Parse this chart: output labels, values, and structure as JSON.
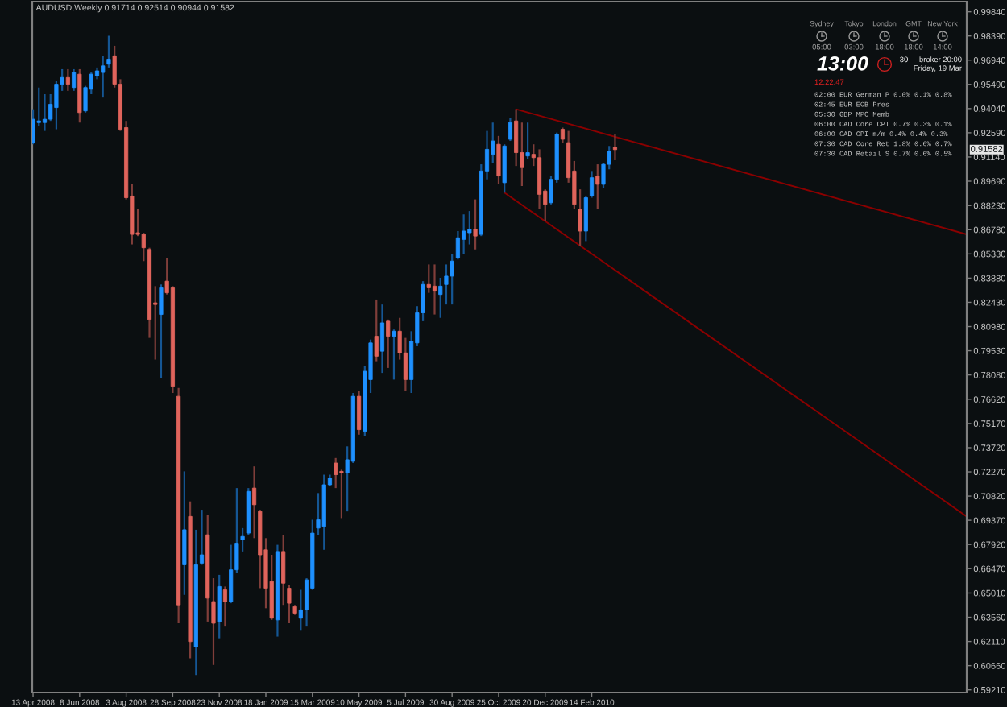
{
  "chart_data": [
    {
      "type": "candlestick",
      "title": "AUDUSD,Weekly 0.91714 0.92514 0.90944 0.91582",
      "x": [
        "2008-04-13",
        "2008-04-20",
        "2008-04-27",
        "2008-05-04",
        "2008-05-11",
        "2008-05-18",
        "2008-05-25",
        "2008-06-01",
        "2008-06-08",
        "2008-06-15",
        "2008-06-22",
        "2008-06-29",
        "2008-07-06",
        "2008-07-13",
        "2008-07-20",
        "2008-07-27",
        "2008-08-03",
        "2008-08-10",
        "2008-08-17",
        "2008-08-24",
        "2008-08-31",
        "2008-09-07",
        "2008-09-14",
        "2008-09-21",
        "2008-09-28",
        "2008-10-05",
        "2008-10-12",
        "2008-10-19",
        "2008-10-26",
        "2008-11-02",
        "2008-11-09",
        "2008-11-16",
        "2008-11-23",
        "2008-11-30",
        "2008-12-07",
        "2008-12-14",
        "2008-12-21",
        "2008-12-28",
        "2009-01-04",
        "2009-01-11",
        "2009-01-18",
        "2009-01-25",
        "2009-02-01",
        "2009-02-08",
        "2009-02-15",
        "2009-02-22",
        "2009-03-01",
        "2009-03-08",
        "2009-03-15",
        "2009-03-22",
        "2009-03-29",
        "2009-04-05",
        "2009-04-12",
        "2009-04-19",
        "2009-04-26",
        "2009-05-03",
        "2009-05-10",
        "2009-05-17",
        "2009-05-24",
        "2009-05-31",
        "2009-06-07",
        "2009-06-14",
        "2009-06-21",
        "2009-06-28",
        "2009-07-05",
        "2009-07-12",
        "2009-07-19",
        "2009-07-26",
        "2009-08-02",
        "2009-08-09",
        "2009-08-16",
        "2009-08-23",
        "2009-08-30",
        "2009-09-06",
        "2009-09-13",
        "2009-09-20",
        "2009-09-27",
        "2009-10-04",
        "2009-10-11",
        "2009-10-18",
        "2009-10-25",
        "2009-11-01",
        "2009-11-08",
        "2009-11-15",
        "2009-11-22",
        "2009-11-29",
        "2009-12-06",
        "2009-12-13",
        "2009-12-20",
        "2009-12-27",
        "2010-01-03",
        "2010-01-10",
        "2010-01-17",
        "2010-01-24",
        "2010-01-31",
        "2010-02-07",
        "2010-02-14",
        "2010-02-21",
        "2010-02-28",
        "2010-03-07",
        "2010-03-14"
      ],
      "ohlc": [
        [
          0.92,
          0.94,
          0.919,
          0.934
        ],
        [
          0.932,
          0.953,
          0.93,
          0.933
        ],
        [
          0.932,
          0.949,
          0.927,
          0.934
        ],
        [
          0.934,
          0.949,
          0.933,
          0.943
        ],
        [
          0.941,
          0.957,
          0.928,
          0.955
        ],
        [
          0.955,
          0.964,
          0.951,
          0.959
        ],
        [
          0.959,
          0.964,
          0.951,
          0.955
        ],
        [
          0.953,
          0.964,
          0.951,
          0.962
        ],
        [
          0.961,
          0.964,
          0.932,
          0.938
        ],
        [
          0.939,
          0.954,
          0.938,
          0.953
        ],
        [
          0.952,
          0.962,
          0.949,
          0.961
        ],
        [
          0.96,
          0.965,
          0.958,
          0.963
        ],
        [
          0.962,
          0.972,
          0.947,
          0.966
        ],
        [
          0.967,
          0.984,
          0.965,
          0.97
        ],
        [
          0.972,
          0.978,
          0.953,
          0.955
        ],
        [
          0.955,
          0.958,
          0.927,
          0.928
        ],
        [
          0.929,
          0.933,
          0.886,
          0.887
        ],
        [
          0.888,
          0.895,
          0.859,
          0.865
        ],
        [
          0.866,
          0.88,
          0.864,
          0.865
        ],
        [
          0.865,
          0.866,
          0.849,
          0.857
        ],
        [
          0.856,
          0.857,
          0.803,
          0.814
        ],
        [
          0.824,
          0.834,
          0.79,
          0.823
        ],
        [
          0.817,
          0.835,
          0.779,
          0.833
        ],
        [
          0.837,
          0.851,
          0.829,
          0.83
        ],
        [
          0.833,
          0.834,
          0.77,
          0.774
        ],
        [
          0.768,
          0.773,
          0.632,
          0.643
        ],
        [
          0.667,
          0.723,
          0.649,
          0.688
        ],
        [
          0.696,
          0.705,
          0.611,
          0.621
        ],
        [
          0.618,
          0.688,
          0.601,
          0.667
        ],
        [
          0.668,
          0.7,
          0.667,
          0.673
        ],
        [
          0.685,
          0.697,
          0.633,
          0.647
        ],
        [
          0.645,
          0.659,
          0.607,
          0.632
        ],
        [
          0.633,
          0.661,
          0.623,
          0.654
        ],
        [
          0.652,
          0.654,
          0.63,
          0.645
        ],
        [
          0.645,
          0.679,
          0.644,
          0.664
        ],
        [
          0.664,
          0.713,
          0.662,
          0.68
        ],
        [
          0.682,
          0.689,
          0.675,
          0.684
        ],
        [
          0.686,
          0.713,
          0.685,
          0.711
        ],
        [
          0.713,
          0.726,
          0.683,
          0.703
        ],
        [
          0.699,
          0.7,
          0.653,
          0.673
        ],
        [
          0.676,
          0.683,
          0.641,
          0.653
        ],
        [
          0.657,
          0.673,
          0.634,
          0.635
        ],
        [
          0.634,
          0.679,
          0.624,
          0.675
        ],
        [
          0.675,
          0.685,
          0.643,
          0.656
        ],
        [
          0.653,
          0.655,
          0.632,
          0.644
        ],
        [
          0.642,
          0.643,
          0.637,
          0.638
        ],
        [
          0.635,
          0.652,
          0.628,
          0.64
        ],
        [
          0.64,
          0.659,
          0.63,
          0.658
        ],
        [
          0.653,
          0.694,
          0.652,
          0.686
        ],
        [
          0.689,
          0.71,
          0.685,
          0.694
        ],
        [
          0.69,
          0.721,
          0.676,
          0.715
        ],
        [
          0.715,
          0.721,
          0.714,
          0.719
        ],
        [
          0.728,
          0.731,
          0.713,
          0.721
        ],
        [
          0.723,
          0.724,
          0.695,
          0.722
        ],
        [
          0.722,
          0.738,
          0.699,
          0.73
        ],
        [
          0.729,
          0.77,
          0.728,
          0.768
        ],
        [
          0.768,
          0.771,
          0.745,
          0.748
        ],
        [
          0.747,
          0.786,
          0.744,
          0.783
        ],
        [
          0.778,
          0.802,
          0.77,
          0.8
        ],
        [
          0.804,
          0.826,
          0.789,
          0.792
        ],
        [
          0.795,
          0.823,
          0.782,
          0.812
        ],
        [
          0.813,
          0.814,
          0.785,
          0.804
        ],
        [
          0.804,
          0.808,
          0.778,
          0.807
        ],
        [
          0.807,
          0.815,
          0.79,
          0.794
        ],
        [
          0.794,
          0.803,
          0.771,
          0.778
        ],
        [
          0.778,
          0.807,
          0.77,
          0.801
        ],
        [
          0.8,
          0.822,
          0.798,
          0.818
        ],
        [
          0.818,
          0.837,
          0.813,
          0.835
        ],
        [
          0.835,
          0.847,
          0.83,
          0.833
        ],
        [
          0.834,
          0.847,
          0.817,
          0.831
        ],
        [
          0.829,
          0.839,
          0.815,
          0.834
        ],
        [
          0.835,
          0.847,
          0.823,
          0.84
        ],
        [
          0.84,
          0.853,
          0.823,
          0.849
        ],
        [
          0.851,
          0.867,
          0.85,
          0.863
        ],
        [
          0.862,
          0.877,
          0.853,
          0.867
        ],
        [
          0.866,
          0.879,
          0.859,
          0.868
        ],
        [
          0.868,
          0.886,
          0.856,
          0.864
        ],
        [
          0.865,
          0.907,
          0.864,
          0.903
        ],
        [
          0.903,
          0.927,
          0.898,
          0.916
        ],
        [
          0.913,
          0.932,
          0.908,
          0.921
        ],
        [
          0.919,
          0.924,
          0.895,
          0.9
        ],
        [
          0.896,
          0.919,
          0.89,
          0.918
        ],
        [
          0.922,
          0.935,
          0.921,
          0.932
        ],
        [
          0.933,
          0.94,
          0.906,
          0.914
        ],
        [
          0.914,
          0.932,
          0.894,
          0.905
        ],
        [
          0.912,
          0.932,
          0.91,
          0.914
        ],
        [
          0.913,
          0.919,
          0.906,
          0.911
        ],
        [
          0.911,
          0.916,
          0.88,
          0.889
        ],
        [
          0.891,
          0.892,
          0.873,
          0.883
        ],
        [
          0.884,
          0.9,
          0.883,
          0.898
        ],
        [
          0.898,
          0.926,
          0.896,
          0.925
        ],
        [
          0.928,
          0.929,
          0.92,
          0.922
        ],
        [
          0.92,
          0.927,
          0.896,
          0.899
        ],
        [
          0.903,
          0.909,
          0.88,
          0.883
        ],
        [
          0.88,
          0.892,
          0.858,
          0.867
        ],
        [
          0.867,
          0.888,
          0.861,
          0.887
        ],
        [
          0.888,
          0.903,
          0.887,
          0.899
        ],
        [
          0.9,
          0.907,
          0.88,
          0.895
        ],
        [
          0.895,
          0.908,
          0.893,
          0.907
        ],
        [
          0.907,
          0.918,
          0.904,
          0.915
        ],
        [
          0.91714,
          0.92514,
          0.90944,
          0.91582
        ]
      ],
      "colors": [
        "#1e90ff",
        "#1e90ff",
        "#1e90ff",
        "#1e90ff",
        "#1e90ff",
        "#1e90ff",
        "#e0645c",
        "#1e90ff",
        "#e0645c",
        "#1e90ff",
        "#1e90ff",
        "#1e90ff",
        "#1e90ff",
        "#1e90ff",
        "#e0645c",
        "#e0645c",
        "#e0645c",
        "#e0645c",
        "#e0645c",
        "#e0645c",
        "#e0645c",
        "#e0645c",
        "#1e90ff",
        "#e0645c",
        "#e0645c",
        "#e0645c",
        "#1e90ff",
        "#e0645c",
        "#1e90ff",
        "#1e90ff",
        "#e0645c",
        "#e0645c",
        "#1e90ff",
        "#e0645c",
        "#1e90ff",
        "#1e90ff",
        "#1e90ff",
        "#1e90ff",
        "#e0645c",
        "#e0645c",
        "#e0645c",
        "#e0645c",
        "#1e90ff",
        "#e0645c",
        "#e0645c",
        "#e0645c",
        "#1e90ff",
        "#1e90ff",
        "#1e90ff",
        "#1e90ff",
        "#1e90ff",
        "#1e90ff",
        "#e0645c",
        "#e0645c",
        "#1e90ff",
        "#1e90ff",
        "#e0645c",
        "#1e90ff",
        "#1e90ff",
        "#e0645c",
        "#1e90ff",
        "#e0645c",
        "#1e90ff",
        "#e0645c",
        "#e0645c",
        "#1e90ff",
        "#1e90ff",
        "#1e90ff",
        "#e0645c",
        "#e0645c",
        "#1e90ff",
        "#1e90ff",
        "#1e90ff",
        "#1e90ff",
        "#1e90ff",
        "#1e90ff",
        "#e0645c",
        "#1e90ff",
        "#1e90ff",
        "#1e90ff",
        "#e0645c",
        "#1e90ff",
        "#1e90ff",
        "#e0645c",
        "#e0645c",
        "#1e90ff",
        "#e0645c",
        "#e0645c",
        "#e0645c",
        "#1e90ff",
        "#1e90ff",
        "#e0645c",
        "#e0645c",
        "#e0645c",
        "#e0645c",
        "#1e90ff",
        "#1e90ff",
        "#e0645c",
        "#1e90ff",
        "#1e90ff",
        "#e0645c"
      ],
      "series": [
        {
          "type": "line",
          "color": "#8b0000",
          "x": [
            "2009-11-15",
            "2011-05-11"
          ],
          "values": [
            0.94,
            0.865
          ]
        },
        {
          "type": "line",
          "color": "#8b0000",
          "x": [
            "2009-11-01",
            "2011-05-11"
          ],
          "values": [
            0.89,
            0.696
          ]
        }
      ],
      "xlim": [
        "2008-04-12",
        "2011-05-11"
      ],
      "ylim": [
        0.5905,
        1.0045
      ],
      "xticks": [
        {
          "value": "2008-04-13",
          "label": "13 Apr 2008"
        },
        {
          "value": "2008-06-08",
          "label": "8 Jun 2008"
        },
        {
          "value": "2008-08-03",
          "label": "3 Aug 2008"
        },
        {
          "value": "2008-09-28",
          "label": "28 Sep 2008"
        },
        {
          "value": "2008-11-23",
          "label": "23 Nov 2008"
        },
        {
          "value": "2009-01-18",
          "label": "18 Jan 2009"
        },
        {
          "value": "2009-03-15",
          "label": "15 Mar 2009"
        },
        {
          "value": "2009-05-10",
          "label": "10 May 2009"
        },
        {
          "value": "2009-07-05",
          "label": "5 Jul 2009"
        },
        {
          "value": "2009-08-30",
          "label": "30 Aug 2009"
        },
        {
          "value": "2009-10-25",
          "label": "25 Oct 2009"
        },
        {
          "value": "2009-12-20",
          "label": "20 Dec 2009"
        },
        {
          "value": "2010-02-14",
          "label": "14 Feb 2010"
        }
      ],
      "yticks": [
        {
          "value": 0.5921,
          "label": "0.59210"
        },
        {
          "value": 0.6066,
          "label": "0.60660"
        },
        {
          "value": 0.6211,
          "label": "0.62110"
        },
        {
          "value": 0.6356,
          "label": "0.63560"
        },
        {
          "value": 0.6501,
          "label": "0.65010"
        },
        {
          "value": 0.6647,
          "label": "0.66470"
        },
        {
          "value": 0.6792,
          "label": "0.67920"
        },
        {
          "value": 0.6937,
          "label": "0.69370"
        },
        {
          "value": 0.7082,
          "label": "0.70820"
        },
        {
          "value": 0.7227,
          "label": "0.72270"
        },
        {
          "value": 0.7372,
          "label": "0.73720"
        },
        {
          "value": 0.7517,
          "label": "0.75170"
        },
        {
          "value": 0.7662,
          "label": "0.76620"
        },
        {
          "value": 0.7808,
          "label": "0.78080"
        },
        {
          "value": 0.7953,
          "label": "0.79530"
        },
        {
          "value": 0.8098,
          "label": "0.80980"
        },
        {
          "value": 0.8243,
          "label": "0.82430"
        },
        {
          "value": 0.8388,
          "label": "0.83880"
        },
        {
          "value": 0.8533,
          "label": "0.85330"
        },
        {
          "value": 0.8678,
          "label": "0.86780"
        },
        {
          "value": 0.8823,
          "label": "0.88230"
        },
        {
          "value": 0.8969,
          "label": "0.89690"
        },
        {
          "value": 0.9114,
          "label": "0.91140"
        },
        {
          "value": 0.9259,
          "label": "0.92590"
        },
        {
          "value": 0.9404,
          "label": "0.94040"
        },
        {
          "value": 0.9549,
          "label": "0.95490"
        },
        {
          "value": 0.9694,
          "label": "0.96940"
        },
        {
          "value": 0.9839,
          "label": "0.98390"
        },
        {
          "value": 0.9984,
          "label": "0.99840"
        }
      ],
      "annotations": [
        "0.91582"
      ]
    },
    {
      "type": "other",
      "annotations": [
        "Sydney",
        "Tokyo",
        "London",
        "GMT",
        "New York",
        "05:00",
        "03:00",
        "18:00",
        "18:00",
        "14:00",
        "13:00",
        "30",
        "broker 20:00",
        "Friday, 19 Mar",
        "12:22:47",
        "02:00 EUR German P 0.0% 0.1% 0.8%",
        "02:45 EUR ECB Pres",
        "05:30 GBP MPC Memb",
        "06:00 CAD Core CPI 0.7% 0.3% 0.1%",
        "06:00 CAD CPI m/m 0.4% 0.4% 0.3%",
        "07:30 CAD Core Ret 1.8% 0.6% 0.7%",
        "07:30 CAD Retail S 0.7% 0.6% 0.5%"
      ]
    }
  ]
}
